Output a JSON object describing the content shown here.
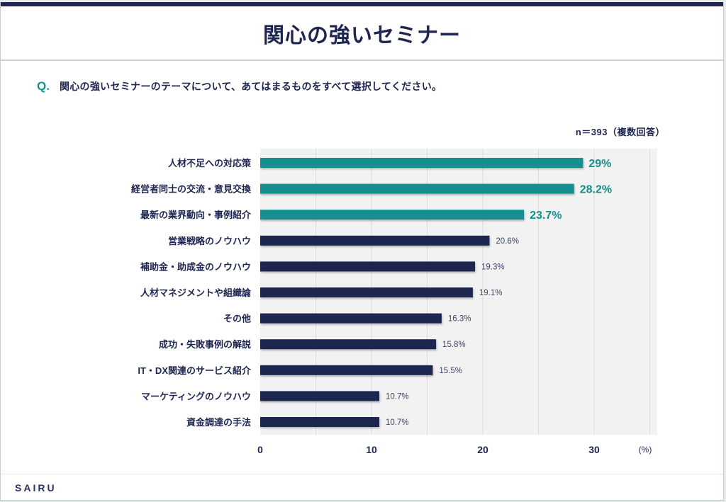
{
  "page": {
    "title": "関心の強いセミナー",
    "question_mark": "Q.",
    "question_text": "関心の強いセミナーのテーマについて、あてはまるものをすべて選択してください。",
    "sample_note": "n＝393（複数回答）",
    "brand": "SAIRU"
  },
  "colors": {
    "highlight": "#138f8f",
    "primary": "#1e2550",
    "plot_bg": "#f2f2f2",
    "grid": "#dcdcdc"
  },
  "chart_data": {
    "type": "bar",
    "orientation": "horizontal",
    "title": "関心の強いセミナー",
    "xlabel": "",
    "ylabel": "",
    "unit_label": "(%)",
    "xlim": [
      0,
      35
    ],
    "xticks": [
      0,
      10,
      20,
      30
    ],
    "minor_grid_step": 5,
    "grid": true,
    "legend": "none",
    "highlight_top_n": 3,
    "categories": [
      "人材不足への対応策",
      "経営者同士の交流・意見交換",
      "最新の業界動向・事例紹介",
      "営業戦略のノウハウ",
      "補助金・助成金のノウハウ",
      "人材マネジメントや組織論",
      "その他",
      "成功・失敗事例の解説",
      "IT・DX関連のサービス紹介",
      "マーケティングのノウハウ",
      "資金調達の手法"
    ],
    "values": [
      29,
      28.2,
      23.7,
      20.6,
      19.3,
      19.1,
      16.3,
      15.8,
      15.5,
      10.7,
      10.7
    ],
    "data_labels": [
      "29%",
      "28.2%",
      "23.7%",
      "20.6%",
      "19.3%",
      "19.1%",
      "16.3%",
      "15.8%",
      "15.5%",
      "10.7%",
      "10.7%"
    ]
  }
}
